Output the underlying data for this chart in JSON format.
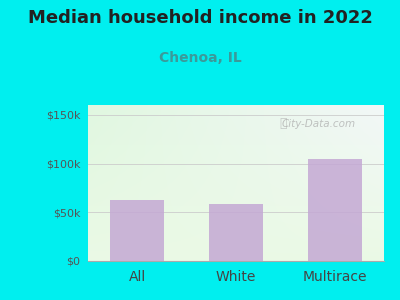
{
  "title": "Median household income in 2022",
  "subtitle": "Chenoa, IL",
  "categories": [
    "All",
    "White",
    "Multirace"
  ],
  "values": [
    63000,
    58000,
    105000
  ],
  "bar_color": "#C4A8D4",
  "background_color": "#00EFEF",
  "title_fontsize": 13,
  "subtitle_fontsize": 10,
  "yticks": [
    0,
    50000,
    100000,
    150000
  ],
  "ylim": [
    0,
    160000
  ],
  "watermark": "City-Data.com",
  "tick_label_fontsize": 8,
  "xlabel_fontsize": 10,
  "ylabel_tick_labels": [
    "$0",
    "$50k",
    "$100k",
    "$150k"
  ]
}
